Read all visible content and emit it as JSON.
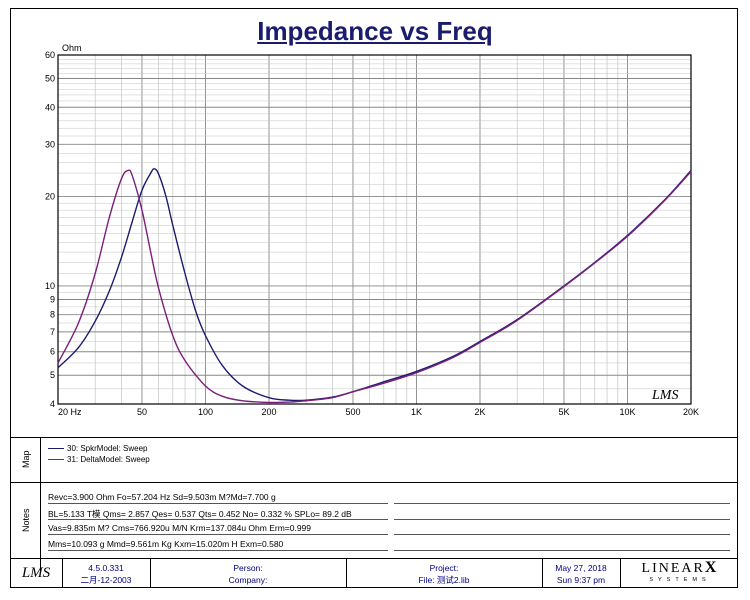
{
  "chart_data": {
    "type": "line",
    "title": "Impedance vs Freq",
    "ylabel": "Ohm",
    "xscale": "log",
    "yscale": "log",
    "xlim": [
      20,
      20000
    ],
    "ylim": [
      4,
      60
    ],
    "x_tick_labels": [
      "20 Hz",
      "50",
      "100",
      "200",
      "500",
      "1K",
      "2K",
      "5K",
      "10K",
      "20K"
    ],
    "y_tick_labels": [
      "60",
      "50",
      "40",
      "30",
      "20",
      "10",
      "9",
      "8",
      "7",
      "6",
      "5",
      "4"
    ],
    "series": [
      {
        "name": "30: SpkrModel: Sweep",
        "color": "#1c1c6e",
        "x": [
          20,
          25,
          30,
          35,
          40,
          45,
          50,
          55,
          57.2,
          60,
          65,
          70,
          80,
          90,
          100,
          120,
          150,
          200,
          250,
          300,
          400,
          500,
          700,
          1000,
          1500,
          2000,
          3000,
          5000,
          7000,
          10000,
          15000,
          20000
        ],
        "y": [
          5.3,
          6.2,
          7.6,
          9.6,
          12.5,
          16.5,
          21.0,
          24.0,
          24.8,
          23.8,
          20.0,
          16.0,
          11.0,
          8.2,
          6.8,
          5.4,
          4.6,
          4.2,
          4.12,
          4.12,
          4.22,
          4.4,
          4.75,
          5.15,
          5.8,
          6.5,
          7.7,
          10.0,
          12.0,
          14.8,
          19.5,
          24.5
        ]
      },
      {
        "name": "31: DeltaModel: Sweep",
        "color": "#7a1f7a",
        "x": [
          20,
          25,
          30,
          35,
          40,
          43,
          45,
          50,
          55,
          60,
          70,
          80,
          100,
          120,
          150,
          200,
          250,
          300,
          400,
          500,
          700,
          1000,
          1500,
          2000,
          3000,
          5000,
          7000,
          10000,
          15000,
          20000
        ],
        "y": [
          5.5,
          7.5,
          11.0,
          17.0,
          23.0,
          24.5,
          23.5,
          18.0,
          13.0,
          9.8,
          6.8,
          5.6,
          4.6,
          4.25,
          4.1,
          4.05,
          4.06,
          4.1,
          4.2,
          4.4,
          4.7,
          5.1,
          5.75,
          6.45,
          7.65,
          9.95,
          11.95,
          14.7,
          19.4,
          24.3
        ]
      }
    ]
  },
  "watermark": "LMS",
  "map": {
    "label": "Map",
    "legend": [
      {
        "text": "30: SpkrModel: Sweep",
        "color": "#1c1c6e"
      },
      {
        "text": "31: DeltaModel: Sweep",
        "color": "#7a1f7a"
      }
    ]
  },
  "notes": {
    "label": "Notes",
    "lines": [
      "Revc=3.900 Ohm  Fo=57.204 Hz  Sd=9.503m M?Md=7.700 g",
      "BL=5.133 T模  Qms= 2.857  Qes= 0.537  Qts= 0.452  No= 0.332 %  SPLo= 89.2 dB",
      "Vas=9.835m M? Cms=766.920u M/N  Krm=137.084u Ohm  Erm=0.999",
      "Mms=10.093 g  Mmd=9.561m Kg  Kxm=15.020m H  Exm=0.580"
    ]
  },
  "footer": {
    "logo": "LMS",
    "version": "4.5.0.331",
    "version_date": "二月-12-2003",
    "person_label": "Person:",
    "company_label": "Company:",
    "project_label": "Project:",
    "file_label": "File: 测试2.lib",
    "date": "May 27, 2018",
    "time": "Sun  9:37 pm",
    "brand_top": "LINEAR",
    "brand_x": "X",
    "brand_bottom": "SYSTEMS"
  }
}
